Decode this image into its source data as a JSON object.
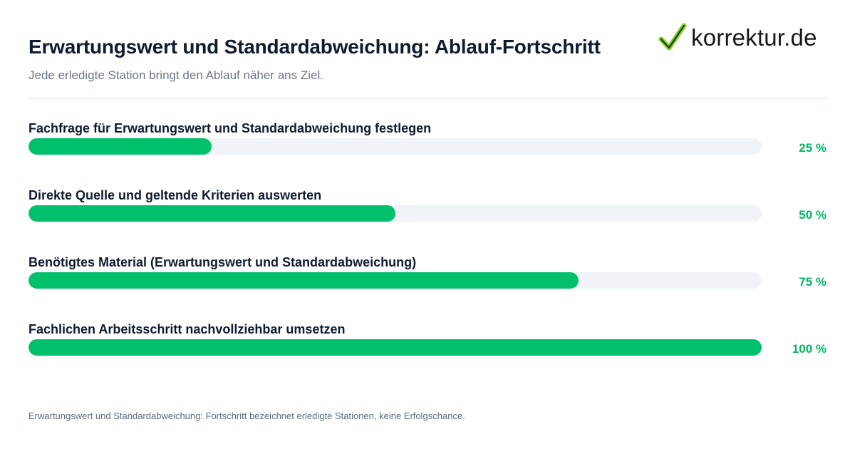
{
  "brand": {
    "logo_text": "korrektur.de",
    "checkmark_color": "#7ed321"
  },
  "colors": {
    "accent": "#00c06b",
    "track": "#f0f3f7",
    "title": "#0f1c2e",
    "muted": "#6b7688"
  },
  "chart_data": {
    "type": "bar",
    "orientation": "horizontal",
    "title": "Erwartungswert und Standardabweichung: Ablauf-Fortschritt",
    "subtitle": "Jede erledigte Station bringt den Ablauf näher ans Ziel.",
    "unit": "%",
    "xlim": [
      0,
      100
    ],
    "grid": false,
    "legend": "none",
    "categories": [
      "Fachfrage für Erwartungswert und Standardabweichung festlegen",
      "Direkte Quelle und geltende Kriterien auswerten",
      "Benötigtes Material (Erwartungswert und Standardabweichung)",
      "Fachlichen Arbeitsschritt nachvollziehbar umsetzen"
    ],
    "values": [
      25,
      50,
      75,
      100
    ],
    "value_labels": [
      "25 %",
      "50 %",
      "75 %",
      "100 %"
    ]
  },
  "footnote": "Erwartungswert und Standardabweichung: Fortschritt bezeichnet erledigte Stationen, keine Erfolgschance."
}
